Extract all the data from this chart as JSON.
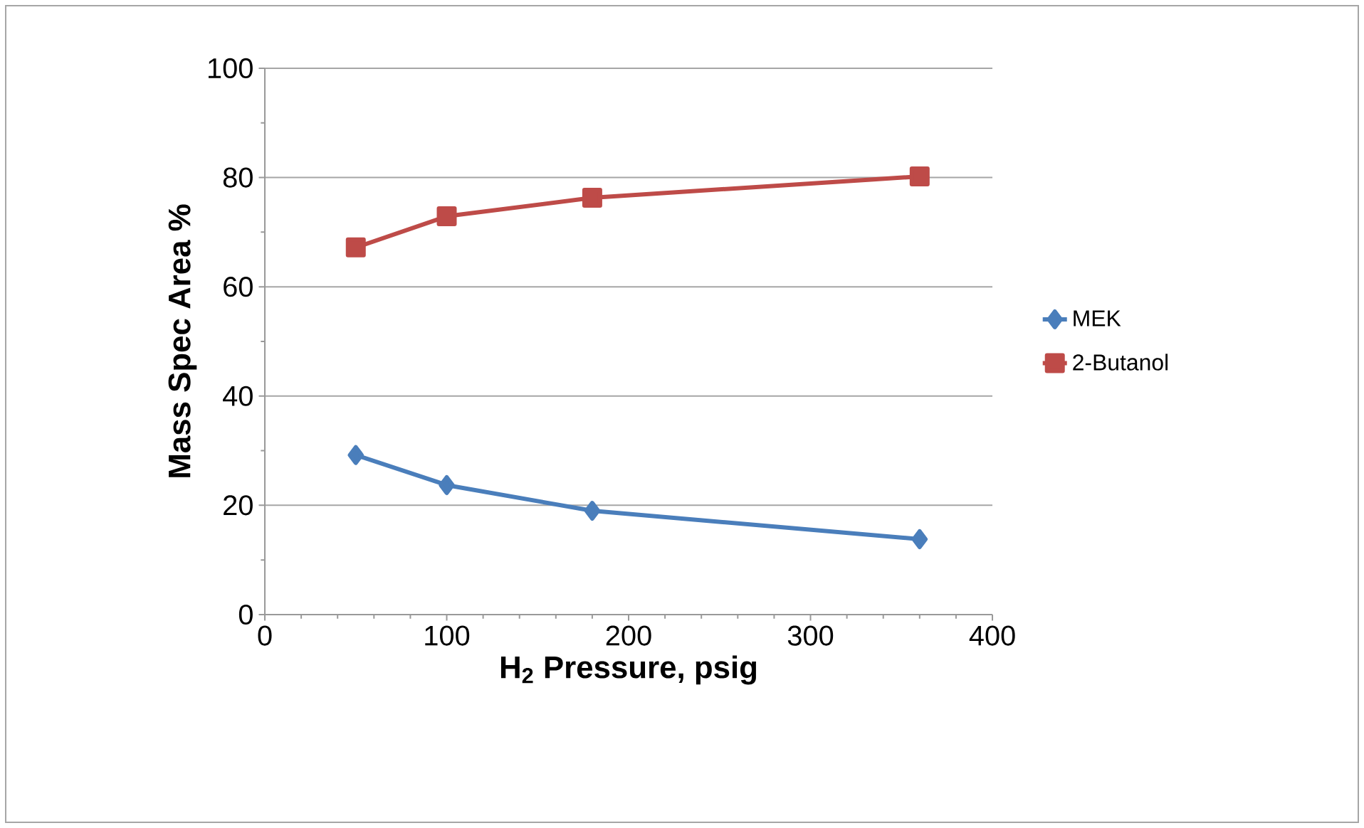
{
  "chart_data": {
    "type": "line",
    "xlabel": "H$_{2}$ Pressure, psig",
    "ylabel": "Mass Spec Area %",
    "x": [
      50,
      100,
      180,
      360
    ],
    "series": [
      {
        "name": "MEK",
        "color": "#4a7ebb",
        "marker": "diamond",
        "values": [
          29.2,
          23.7,
          19.0,
          13.8
        ]
      },
      {
        "name": "2-Butanol",
        "color": "#be4b48",
        "marker": "square",
        "values": [
          67.2,
          72.9,
          76.3,
          80.2
        ]
      }
    ],
    "xlim": [
      0,
      400
    ],
    "xticks": [
      0,
      100,
      200,
      300,
      400
    ],
    "ylim": [
      0,
      100
    ],
    "yticks": [
      0,
      20,
      40,
      60,
      80,
      100
    ],
    "grid": "y",
    "legend": "right",
    "line_style": "solid"
  }
}
